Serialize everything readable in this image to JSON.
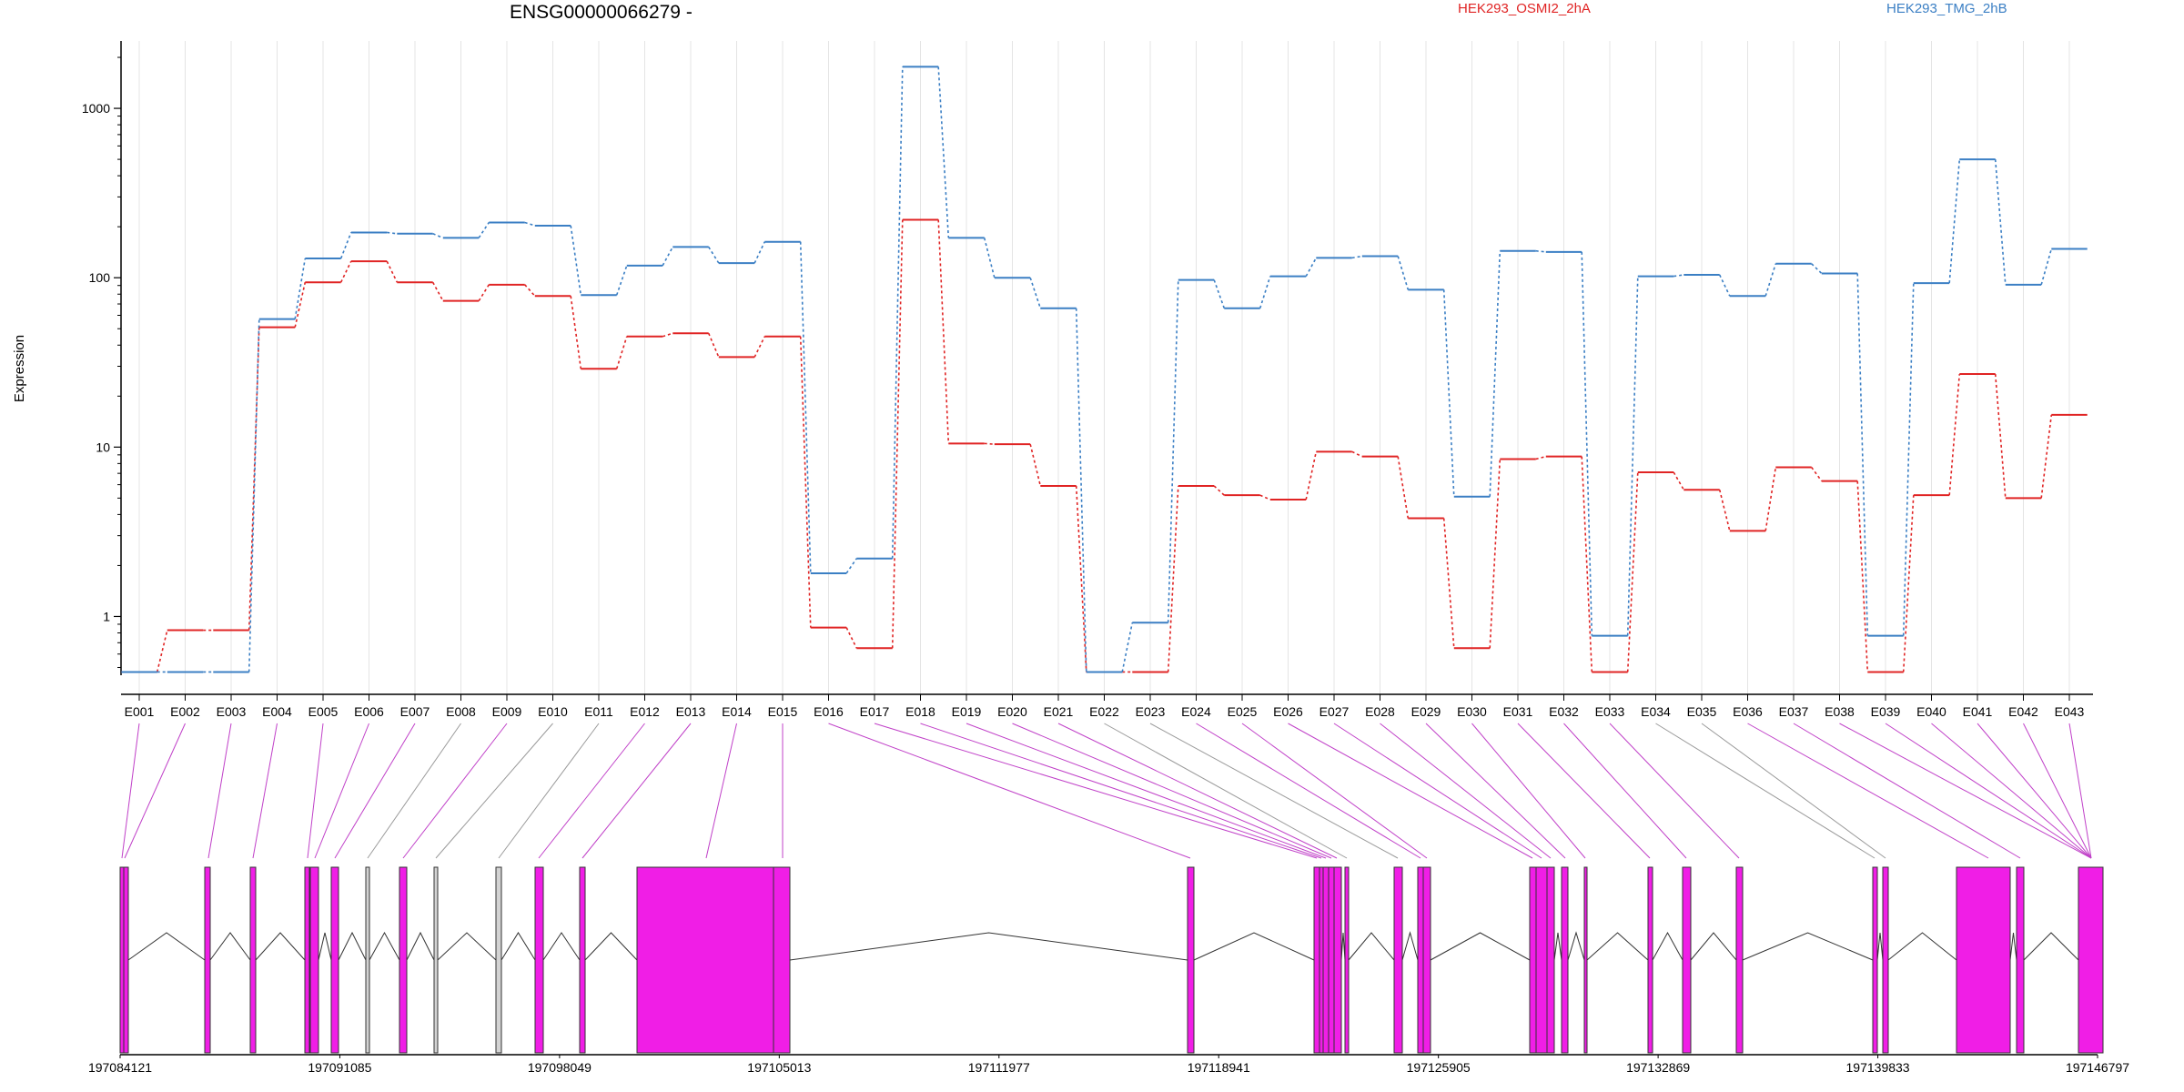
{
  "title": "ENSG00000066279 -",
  "ylabel": "Expression",
  "legend": [
    {
      "name": "HEK293_OSMI2_2hA",
      "color": "#e02424"
    },
    {
      "name": "HEK293_TMG_2hB",
      "color": "#3b7fc4"
    }
  ],
  "genomic_ticks": [
    "197084121",
    "197091085",
    "197098049",
    "197105013",
    "197111977",
    "197118941",
    "197125905",
    "197132869",
    "197139833",
    "197146797"
  ],
  "colors": {
    "exon_fill": "#f01ee6",
    "exon_unused": "#d3d3d3",
    "connector_exon": "#c040c8",
    "connector_unused": "#9a9a9a"
  },
  "chart_data": {
    "type": "line",
    "title": "ENSG00000066279 -",
    "ylabel": "Expression",
    "yscale": "log",
    "ylim": [
      0.45,
      2500
    ],
    "yticks": [
      1,
      10,
      100,
      1000
    ],
    "categories": [
      "E001",
      "E002",
      "E003",
      "E004",
      "E005",
      "E006",
      "E007",
      "E008",
      "E009",
      "E010",
      "E011",
      "E012",
      "E013",
      "E014",
      "E015",
      "E016",
      "E017",
      "E018",
      "E019",
      "E020",
      "E021",
      "E022",
      "E023",
      "E024",
      "E025",
      "E026",
      "E027",
      "E028",
      "E029",
      "E030",
      "E031",
      "E032",
      "E033",
      "E034",
      "E035",
      "E036",
      "E037",
      "E038",
      "E039",
      "E040",
      "E041",
      "E042",
      "E043"
    ],
    "series": [
      {
        "name": "HEK293_OSMI2_2hA",
        "color": "#e02424",
        "values": [
          0.47,
          0.83,
          0.83,
          51,
          94,
          125,
          94,
          73,
          91,
          78,
          29,
          45,
          47,
          34,
          45,
          0.86,
          0.65,
          220,
          10.5,
          10.4,
          5.9,
          0.47,
          0.47,
          5.9,
          5.2,
          4.9,
          9.4,
          8.8,
          3.8,
          0.65,
          8.5,
          8.8,
          0.47,
          7.1,
          5.6,
          3.2,
          7.6,
          6.3,
          0.47,
          5.2,
          27,
          5.0,
          15.5
        ]
      },
      {
        "name": "HEK293_TMG_2hB",
        "color": "#3b7fc4",
        "values": [
          0.47,
          0.47,
          0.47,
          57,
          130,
          185,
          182,
          172,
          212,
          203,
          79,
          118,
          152,
          122,
          163,
          1.8,
          2.2,
          1760,
          172,
          100,
          66,
          0.47,
          0.92,
          97,
          66,
          102,
          131,
          134,
          85,
          5.1,
          144,
          142,
          0.77,
          102,
          104,
          78,
          121,
          106,
          0.77,
          93,
          500,
          91,
          148
        ]
      }
    ],
    "grid": "vertical",
    "legend_position": "top"
  },
  "gene_model": {
    "exon_status": [
      "e",
      "e",
      "e",
      "e",
      "e",
      "e",
      "e",
      "u",
      "e",
      "u",
      "u",
      "e",
      "e",
      "e",
      "e",
      "e",
      "e",
      "e",
      "e",
      "e",
      "e",
      "u",
      "u",
      "e",
      "e",
      "e",
      "e",
      "e",
      "e",
      "e",
      "e",
      "e",
      "e",
      "u",
      "u",
      "e",
      "e",
      "e",
      "e",
      "e",
      "e",
      "e",
      "e"
    ]
  }
}
